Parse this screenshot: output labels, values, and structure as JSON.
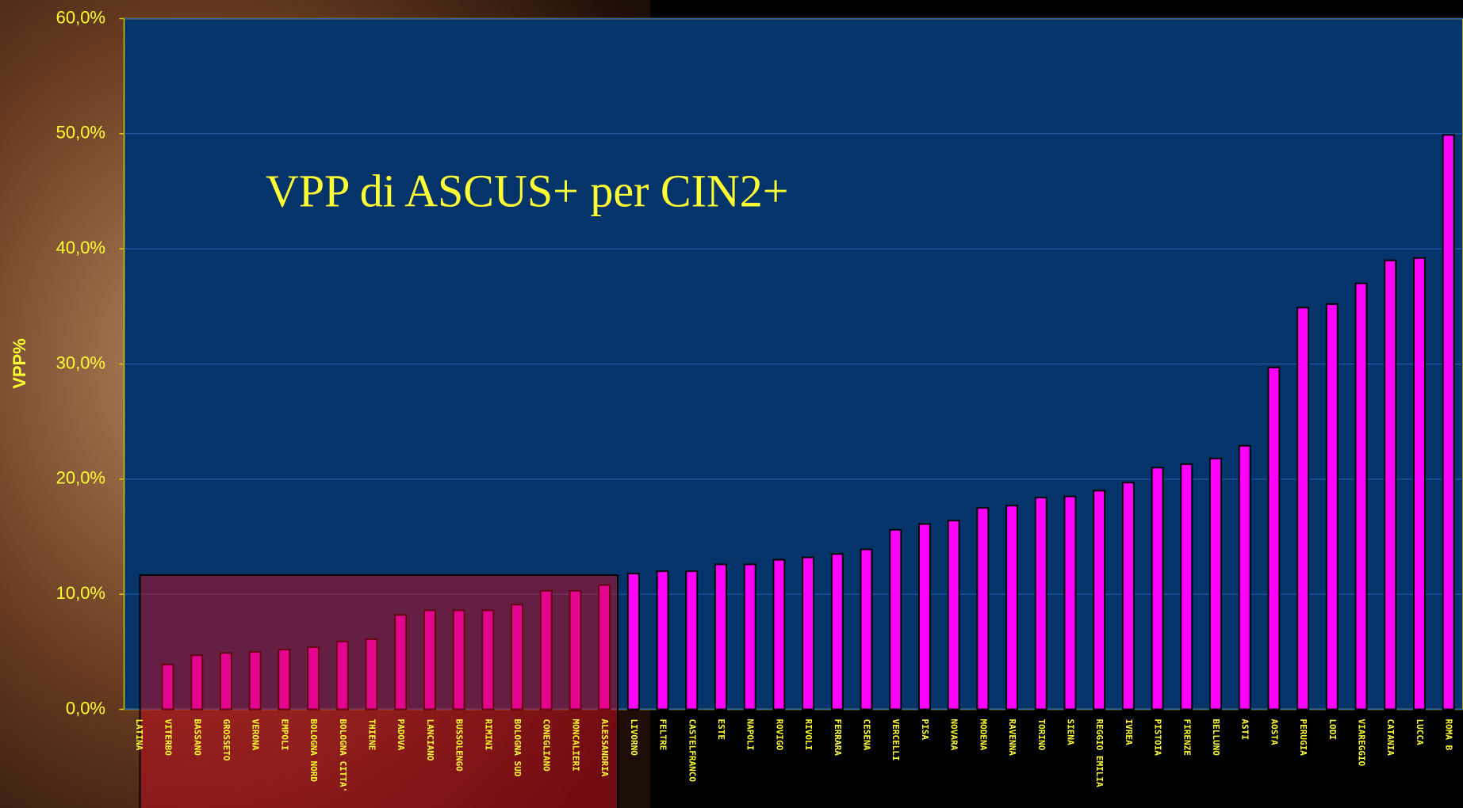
{
  "chart_data": {
    "type": "bar",
    "title": "VPP di ASCUS+ per CIN2+",
    "y_label": "VPP%",
    "categories": [
      "LATINA",
      "VITERBO",
      "BASSANO",
      "GROSSETO",
      "VERONA",
      "EMPOLI",
      "BOLOGNA NORD",
      "BOLOGNA CITTA'",
      "THIENE",
      "PADOVA",
      "LANCIANO",
      "BUSSOLENGO",
      "RIMINI",
      "BOLOGNA SUD",
      "CONEGLIANO",
      "MONCALIERI",
      "ALESSANDRIA",
      "LIVORNO",
      "FELTRE",
      "CASTELFRANCO",
      "ESTE",
      "NAPOLI",
      "ROVIGO",
      "RIVOLI",
      "FERRARA",
      "CESENA",
      "VERCELLI",
      "PISA",
      "NOVARA",
      "MODENA",
      "RAVENNA",
      "TORINO",
      "SIENA",
      "REGGIO EMILIA",
      "IVREA",
      "PISTOIA",
      "FIRENZE",
      "BELLUNO",
      "ASTI",
      "AOSTA",
      "PERUGIA",
      "LODI",
      "VIAREGGIO",
      "CATANIA",
      "LUCCA",
      "ROMA B"
    ],
    "values": [
      0,
      3.9,
      4.7,
      4.9,
      5.0,
      5.2,
      5.4,
      5.9,
      6.1,
      8.2,
      8.6,
      8.6,
      8.6,
      9.1,
      10.3,
      10.3,
      10.8,
      11.8,
      12.0,
      12.0,
      12.6,
      12.6,
      13.0,
      13.2,
      13.5,
      13.9,
      15.6,
      16.1,
      16.4,
      17.5,
      17.7,
      18.4,
      18.5,
      19.0,
      19.7,
      21.0,
      21.3,
      21.8,
      22.9,
      29.7,
      34.9,
      35.2,
      37.0,
      39.0,
      39.2,
      49.9
    ],
    "color": "#ff00ff",
    "ylim": [
      0,
      60
    ],
    "yticks": [
      {
        "value": 0,
        "label": "0,0%"
      },
      {
        "value": 10,
        "label": "10,0%"
      },
      {
        "value": 20,
        "label": "20,0%"
      },
      {
        "value": 30,
        "label": "30,0%"
      },
      {
        "value": 40,
        "label": "40,0%"
      },
      {
        "value": 50,
        "label": "50,0%"
      },
      {
        "value": 60,
        "label": "60,0%"
      }
    ],
    "grid": true
  }
}
